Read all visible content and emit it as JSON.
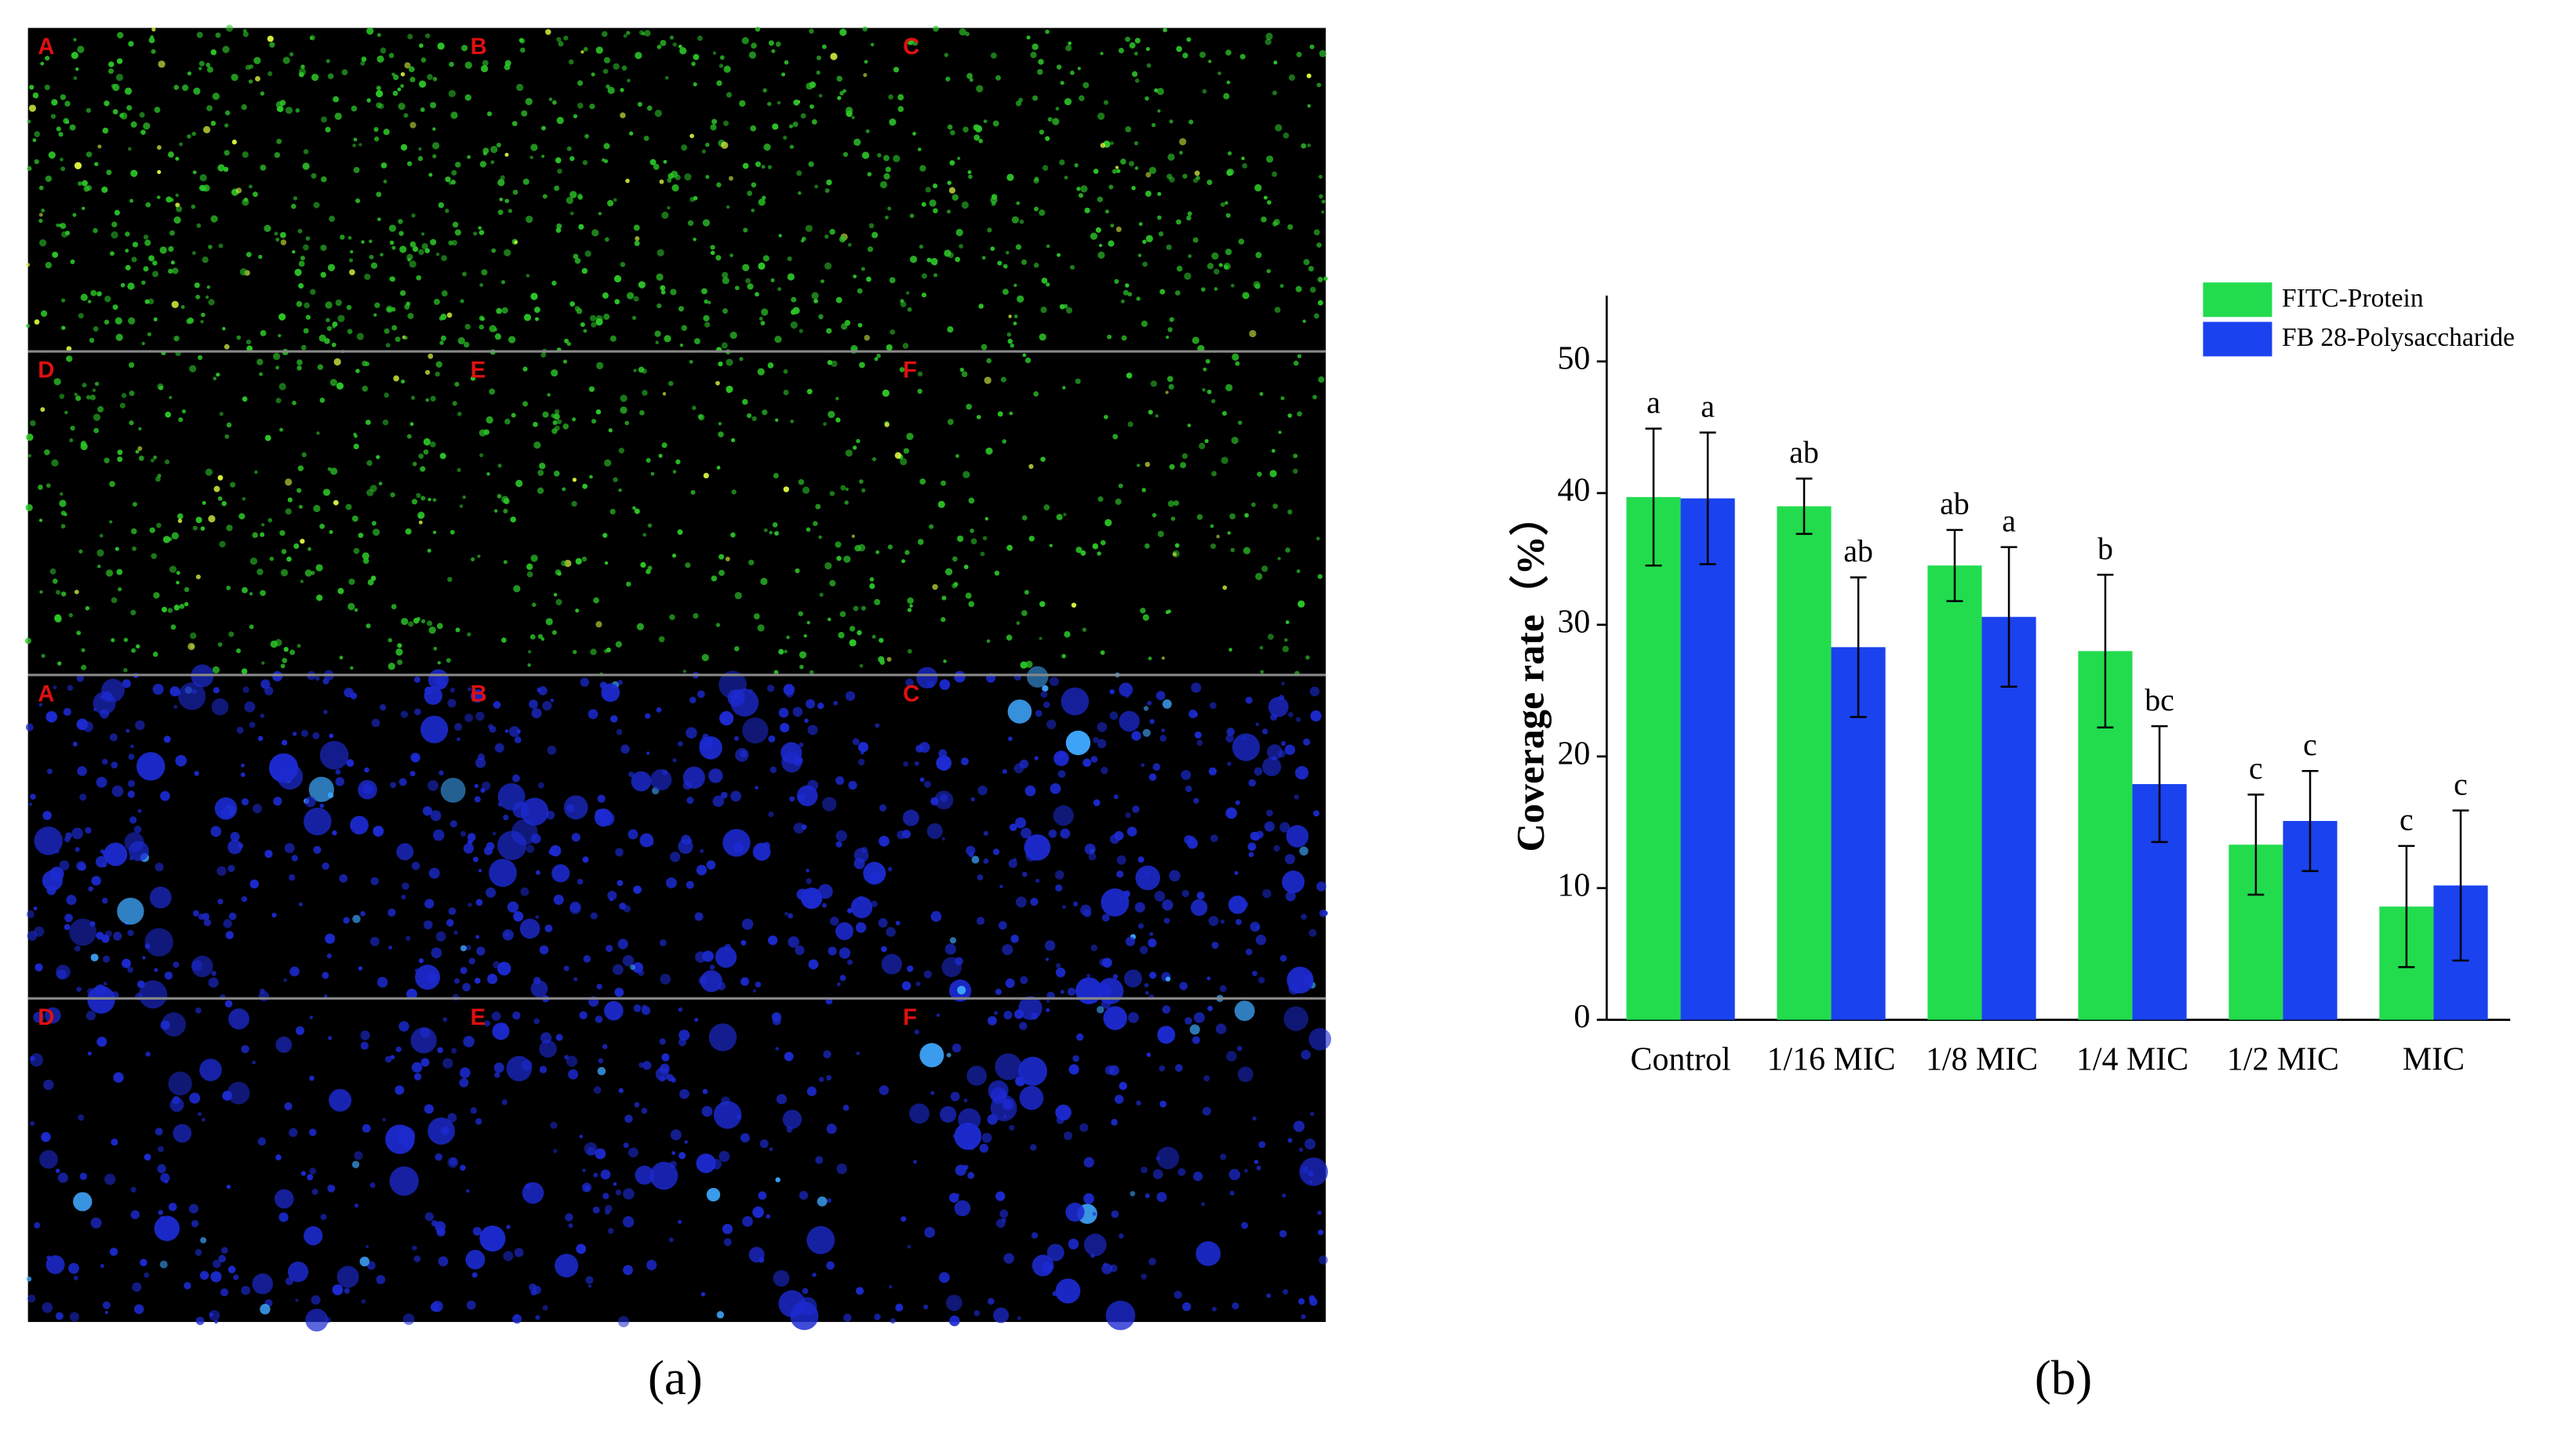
{
  "micrographs": {
    "rows": [
      [
        "A",
        "B",
        "C"
      ],
      [
        "D",
        "E",
        "F"
      ],
      [
        "A",
        "B",
        "C"
      ],
      [
        "D",
        "E",
        "F"
      ]
    ]
  },
  "captions": [
    "(a)",
    "(b)"
  ],
  "chart_data": {
    "type": "bar",
    "y_label": "Coverage rate（%）",
    "categories": [
      "Control",
      "1/16 MIC",
      "1/8 MIC",
      "1/4 MIC",
      "1/2 MIC",
      "MIC"
    ],
    "series": [
      {
        "name": "FITC-Protein",
        "color": "#22dc4e",
        "values": [
          39.7,
          39.0,
          34.5,
          28.0,
          13.3,
          8.6
        ],
        "errors": [
          5.2,
          2.1,
          2.7,
          5.8,
          3.8,
          4.6
        ],
        "letters": [
          "a",
          "ab",
          "ab",
          "b",
          "c",
          "c"
        ]
      },
      {
        "name": "FB 28-Polysaccharide",
        "color": "#1a42ee",
        "values": [
          39.6,
          28.3,
          30.6,
          17.9,
          15.1,
          10.2
        ],
        "errors": [
          5.0,
          5.3,
          5.3,
          4.4,
          3.8,
          5.7
        ],
        "letters": [
          "a",
          "ab",
          "a",
          "bc",
          "c",
          "c"
        ]
      }
    ],
    "ylim": [
      0,
      55
    ],
    "yticks": [
      0,
      10,
      20,
      30,
      40,
      50
    ],
    "legend": "top-right"
  }
}
